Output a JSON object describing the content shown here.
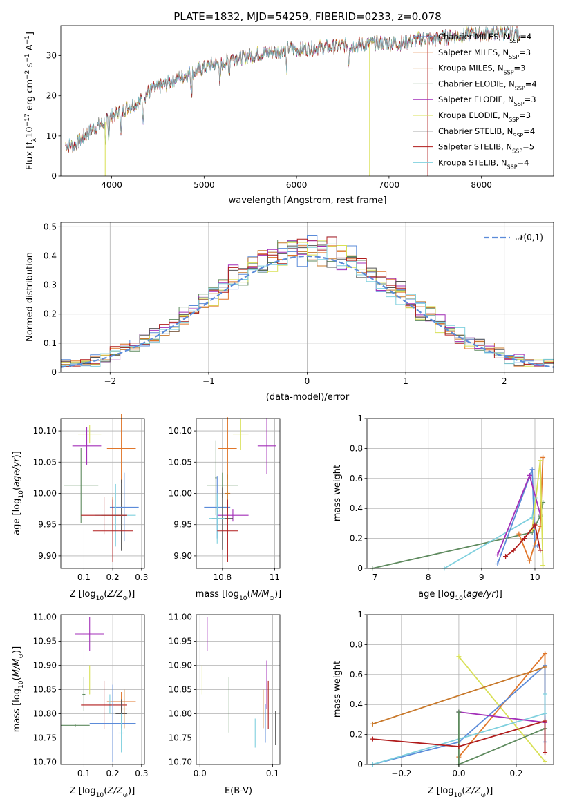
{
  "figure_title": "PLATE=1832, MJD=54259, FIBERID=0233, z=0.078",
  "colors": {
    "Chabrier MILES": "#5b8bd9",
    "Salpeter MILES": "#e0762a",
    "Kroupa MILES": "#c8782a",
    "Chabrier ELODIE": "#5e8a5e",
    "Salpeter ELODIE": "#a32fb8",
    "Kroupa ELODIE": "#d8e055",
    "Chabrier STELIB": "#555555",
    "Salpeter STELIB": "#b01c1c",
    "Kroupa STELIB": "#7fd0de"
  },
  "legend_labels": [
    {
      "key": "Chabrier MILES",
      "label": "Chabrier MILES, N",
      "sub": "SSP",
      "tail": "=4"
    },
    {
      "key": "Salpeter MILES",
      "label": "Salpeter MILES, N",
      "sub": "SSP",
      "tail": "=3"
    },
    {
      "key": "Kroupa MILES",
      "label": "Kroupa MILES, N",
      "sub": "SSP",
      "tail": "=3"
    },
    {
      "key": "Chabrier ELODIE",
      "label": "Chabrier ELODIE, N",
      "sub": "SSP",
      "tail": "=4"
    },
    {
      "key": "Salpeter ELODIE",
      "label": "Salpeter ELODIE, N",
      "sub": "SSP",
      "tail": "=3"
    },
    {
      "key": "Kroupa ELODIE",
      "label": "Kroupa ELODIE, N",
      "sub": "SSP",
      "tail": "=3"
    },
    {
      "key": "Chabrier STELIB",
      "label": "Chabrier STELIB, N",
      "sub": "SSP",
      "tail": "=4"
    },
    {
      "key": "Salpeter STELIB",
      "label": "Salpeter STELIB, N",
      "sub": "SSP",
      "tail": "=5"
    },
    {
      "key": "Kroupa STELIB",
      "label": "Kroupa STELIB, N",
      "sub": "SSP",
      "tail": "=4"
    }
  ],
  "chart_data": [
    {
      "id": "spectrum",
      "type": "line",
      "title": "PLATE=1832, MJD=54259, FIBERID=0233, z=0.078",
      "xlabel": "wavelength [Angstrom, rest frame]",
      "ylabel": "Flux [f",
      "ylabel_parts": [
        "Flux [f",
        "λ",
        "10",
        "−17",
        " erg cm",
        "−2",
        " s",
        "−1",
        " A",
        "−1",
        "]"
      ],
      "xlim": [
        3450,
        8780
      ],
      "ylim": [
        0,
        37.5
      ],
      "xticks": [
        4000,
        5000,
        6000,
        7000,
        8000
      ],
      "yticks": [
        0,
        10,
        20,
        30
      ],
      "grid": false,
      "legend_placement": "right",
      "continuum": [
        [
          3500,
          8
        ],
        [
          3600,
          7.5
        ],
        [
          3700,
          10
        ],
        [
          3800,
          12
        ],
        [
          3900,
          13
        ],
        [
          4000,
          15
        ],
        [
          4100,
          16
        ],
        [
          4200,
          17.5
        ],
        [
          4300,
          18.5
        ],
        [
          4400,
          21
        ],
        [
          4500,
          22
        ],
        [
          4600,
          23
        ],
        [
          4700,
          24.5
        ],
        [
          4800,
          25
        ],
        [
          4900,
          26
        ],
        [
          5000,
          27
        ],
        [
          5100,
          28
        ],
        [
          5200,
          28
        ],
        [
          5300,
          29.5
        ],
        [
          5400,
          29.5
        ],
        [
          5500,
          30
        ],
        [
          5600,
          30.5
        ],
        [
          5700,
          30.8
        ],
        [
          5800,
          31
        ],
        [
          5900,
          32
        ],
        [
          6000,
          31.5
        ],
        [
          6100,
          31.8
        ],
        [
          6200,
          32
        ],
        [
          6300,
          32
        ],
        [
          6400,
          32.2
        ],
        [
          6500,
          32.5
        ],
        [
          6600,
          32.5
        ],
        [
          6700,
          32.8
        ],
        [
          6800,
          33
        ],
        [
          6900,
          33
        ],
        [
          7000,
          33.2
        ],
        [
          7100,
          33
        ],
        [
          7200,
          33.5
        ],
        [
          7300,
          34
        ],
        [
          7400,
          34.5
        ],
        [
          7500,
          34
        ],
        [
          7600,
          34.5
        ],
        [
          7700,
          35
        ],
        [
          7800,
          35
        ],
        [
          7900,
          35.5
        ],
        [
          8000,
          35.5
        ],
        [
          8100,
          35.5
        ],
        [
          8200,
          35.8
        ],
        [
          8300,
          35.5
        ],
        [
          8400,
          35.5
        ]
      ],
      "dropouts": [
        {
          "x": 6790,
          "series": "Kroupa ELODIE"
        },
        {
          "x": 7420,
          "series": "Salpeter STELIB"
        },
        {
          "x": 3930,
          "series": "Kroupa ELODIE"
        }
      ]
    },
    {
      "id": "residuals",
      "type": "histogram",
      "xlabel": "(data-model)/error",
      "ylabel": "Normed distribution",
      "xlim": [
        -2.5,
        2.5
      ],
      "ylim": [
        0,
        0.515
      ],
      "xticks": [
        -2,
        -1,
        0,
        1,
        2
      ],
      "yticks": [
        0.0,
        0.1,
        0.2,
        0.3,
        0.4,
        0.5
      ],
      "grid": true,
      "legend_placement": "top-right",
      "legend": {
        "label": "𝒩(0,1)",
        "color": "#5b8bd9"
      },
      "bin_width": 0.1,
      "bin_start": -2.5
    },
    {
      "id": "age-vs-Z",
      "type": "errorbar",
      "xlabel": "Z [log",
      "ylabel": "age  [log",
      "xlim": [
        0.02,
        0.31
      ],
      "ylim": [
        9.88,
        10.12
      ],
      "xticks": [
        0.1,
        0.2,
        0.3
      ],
      "yticks": [
        9.9,
        9.95,
        10.0,
        10.05,
        10.1
      ],
      "ytick_labels": [
        "9.90",
        "9.95",
        "10.00",
        "10.05",
        "10.10"
      ],
      "grid": true,
      "points": [
        {
          "s": "Kroupa ELODIE",
          "x": 0.12,
          "xe": 0.04,
          "y": 10.095,
          "ye": 0.015
        },
        {
          "s": "Salpeter ELODIE",
          "x": 0.11,
          "xe": 0.05,
          "y": 10.076,
          "ye": 0.03
        },
        {
          "s": "Salpeter MILES",
          "x": 0.23,
          "xe": 0.05,
          "y": 10.072,
          "ye": 0.055
        },
        {
          "s": "Chabrier ELODIE",
          "x": 0.09,
          "xe": 0.06,
          "y": 10.013,
          "ye": 0.06
        },
        {
          "s": "Chabrier STELIB",
          "x": 0.23,
          "xe": 0.02,
          "y": 9.965,
          "ye": 0.057
        },
        {
          "s": "Chabrier MILES",
          "x": 0.24,
          "xe": 0.05,
          "y": 9.978,
          "ye": 0.055
        },
        {
          "s": "Kroupa MILES",
          "x": 0.2,
          "xe": 0.04,
          "y": 9.965,
          "ye": 0.03
        },
        {
          "s": "Kroupa STELIB",
          "x": 0.21,
          "xe": 0.07,
          "y": 9.965,
          "ye": 0.05
        },
        {
          "s": "Salpeter STELIB",
          "x": 0.17,
          "xe": 0.08,
          "y": 9.965,
          "ye": 0.03
        },
        {
          "s": "Salpeter STELIB",
          "x": 0.2,
          "xe": 0.07,
          "y": 9.94,
          "ye": 0.05
        }
      ]
    },
    {
      "id": "age-vs-mass",
      "type": "errorbar",
      "xlabel": "mass [log",
      "xlim": [
        10.7,
        11.02
      ],
      "ylim": [
        9.88,
        10.12
      ],
      "xticks": [
        10.8,
        11.0
      ],
      "yticks": [
        9.9,
        9.95,
        10.0,
        10.05,
        10.1
      ],
      "ytick_labels": [
        "9.90",
        "9.95",
        "10.00",
        "10.05",
        "10.10"
      ],
      "grid": true,
      "points": [
        {
          "s": "Kroupa ELODIE",
          "x": 10.87,
          "xe": 0.03,
          "y": 10.095,
          "ye": 0.025
        },
        {
          "s": "Salpeter ELODIE",
          "x": 10.97,
          "xe": 0.035,
          "y": 10.076,
          "ye": 0.045
        },
        {
          "s": "Salpeter MILES",
          "x": 10.82,
          "xe": 0.035,
          "y": 10.072,
          "ye": 0.05
        },
        {
          "s": "Chabrier ELODIE",
          "x": 10.775,
          "xe": 0.003,
          "y": 10.025,
          "ye": 0.06
        },
        {
          "s": "Chabrier ELODIE",
          "x": 10.8,
          "xe": 0.06,
          "y": 10.013,
          "ye": 0.02
        },
        {
          "s": "Chabrier MILES",
          "x": 10.78,
          "xe": 0.05,
          "y": 9.978,
          "ye": 0.05
        },
        {
          "s": "Kroupa MILES",
          "x": 10.82,
          "xe": 0.01,
          "y": 10.0,
          "ye": 0.03
        },
        {
          "s": "Salpeter ELODIE",
          "x": 10.84,
          "xe": 0.06,
          "y": 9.965,
          "ye": 0.01
        },
        {
          "s": "Chabrier STELIB",
          "x": 10.8,
          "xe": 0.04,
          "y": 9.96,
          "ye": 0.05
        },
        {
          "s": "Kroupa STELIB",
          "x": 10.78,
          "xe": 0.03,
          "y": 9.96,
          "ye": 0.04
        },
        {
          "s": "Salpeter STELIB",
          "x": 10.82,
          "xe": 0.04,
          "y": 9.94,
          "ye": 0.05
        }
      ]
    },
    {
      "id": "weight-vs-age",
      "type": "line",
      "xlabel": "age  [log",
      "ylabel": "mass weight",
      "xlim": [
        6.85,
        10.35
      ],
      "ylim": [
        0,
        1.0
      ],
      "xticks": [
        7,
        8,
        9,
        10
      ],
      "yticks": [
        0.0,
        0.2,
        0.4,
        0.6,
        0.8,
        1.0
      ],
      "grid": true,
      "series": [
        {
          "s": "Chabrier ELODIE",
          "x": [
            6.95,
            9.95,
            10.1,
            10.15
          ],
          "y": [
            0.0,
            0.24,
            0.35,
            0.44
          ]
        },
        {
          "s": "Kroupa STELIB",
          "x": [
            8.3,
            9.95,
            10.0
          ],
          "y": [
            0.0,
            0.34,
            0.47
          ]
        },
        {
          "s": "Chabrier MILES",
          "x": [
            9.3,
            9.95,
            10.0,
            10.05
          ],
          "y": [
            0.03,
            0.66,
            0.15,
            0.15
          ]
        },
        {
          "s": "Salpeter ELODIE",
          "x": [
            9.3,
            9.9,
            10.1
          ],
          "y": [
            0.09,
            0.62,
            0.36
          ]
        },
        {
          "s": "Salpeter MILES",
          "x": [
            9.7,
            9.9,
            10.1,
            10.15
          ],
          "y": [
            0.23,
            0.05,
            0.28,
            0.74
          ]
        },
        {
          "s": "Kroupa ELODIE",
          "x": [
            9.95,
            10.1,
            10.15
          ],
          "y": [
            0.26,
            0.72,
            0.02
          ]
        },
        {
          "s": "Salpeter STELIB",
          "x": [
            9.45,
            9.6,
            9.8,
            10.0,
            10.1
          ],
          "y": [
            0.08,
            0.12,
            0.2,
            0.29,
            0.12
          ]
        }
      ]
    },
    {
      "id": "mass-vs-Z",
      "type": "errorbar",
      "xlabel": "Z [log",
      "ylabel": "mass [log",
      "xlim": [
        0.02,
        0.31
      ],
      "ylim": [
        10.695,
        11.005
      ],
      "xticks": [
        0.1,
        0.2,
        0.3
      ],
      "yticks": [
        10.7,
        10.75,
        10.8,
        10.85,
        10.9,
        10.95,
        11.0
      ],
      "ytick_labels": [
        "10.70",
        "10.75",
        "10.80",
        "10.85",
        "10.90",
        "10.95",
        "11.00"
      ],
      "grid": true,
      "points": [
        {
          "s": "Salpeter ELODIE",
          "x": 0.12,
          "xe": 0.05,
          "y": 10.965,
          "ye": 0.035
        },
        {
          "s": "Kroupa ELODIE",
          "x": 0.12,
          "xe": 0.04,
          "y": 10.87,
          "ye": 0.03
        },
        {
          "s": "Chabrier ELODIE",
          "x": 0.1,
          "xe": 0.005,
          "y": 10.84,
          "ye": 0.035
        },
        {
          "s": "Salpeter MILES",
          "x": 0.23,
          "xe": 0.05,
          "y": 10.825,
          "ye": 0.02
        },
        {
          "s": "Kroupa STELIB",
          "x": 0.19,
          "xe": 0.11,
          "y": 10.82,
          "ye": 0.02
        },
        {
          "s": "Salpeter STELIB",
          "x": 0.17,
          "xe": 0.08,
          "y": 10.818,
          "ye": 0.05
        },
        {
          "s": "Chabrier STELIB",
          "x": 0.23,
          "xe": 0.02,
          "y": 10.8,
          "ye": 0.03
        },
        {
          "s": "Kroupa MILES",
          "x": 0.24,
          "xe": 0.01,
          "y": 10.81,
          "ye": 0.04
        },
        {
          "s": "Chabrier MILES",
          "x": 0.2,
          "xe": 0.08,
          "y": 10.78,
          "ye": 0.08
        },
        {
          "s": "Chabrier ELODIE",
          "x": 0.07,
          "xe": 0.05,
          "y": 10.776,
          "ye": 0.003
        },
        {
          "s": "Kroupa STELIB",
          "x": 0.23,
          "xe": 0.01,
          "y": 10.76,
          "ye": 0.04
        }
      ]
    },
    {
      "id": "mass-vs-ebv",
      "type": "errorbar",
      "xlabel": "E(B-V)",
      "xlim": [
        -0.005,
        0.11
      ],
      "ylim": [
        10.695,
        11.005
      ],
      "xticks": [
        0.0,
        0.1
      ],
      "xtick_labels": [
        "0.0",
        "0.1"
      ],
      "yticks": [
        10.7,
        10.75,
        10.8,
        10.85,
        10.9,
        10.95,
        11.0
      ],
      "ytick_labels": [
        "10.70",
        "10.75",
        "10.80",
        "10.85",
        "10.90",
        "10.95",
        "11.00"
      ],
      "grid": true,
      "points": [
        {
          "s": "Salpeter ELODIE",
          "x": 0.01,
          "xe": 0,
          "y": 10.965,
          "ye": 0.035
        },
        {
          "s": "Kroupa ELODIE",
          "x": 0.003,
          "xe": 0,
          "y": 10.87,
          "ye": 0.03
        },
        {
          "s": "Chabrier ELODIE",
          "x": 0.04,
          "xe": 0,
          "y": 10.818,
          "ye": 0.057
        },
        {
          "s": "Salpeter ELODIE",
          "x": 0.092,
          "xe": 0,
          "y": 10.86,
          "ye": 0.05
        },
        {
          "s": "Salpeter STELIB",
          "x": 0.094,
          "xe": 0,
          "y": 10.818,
          "ye": 0.05
        },
        {
          "s": "Kroupa MILES",
          "x": 0.087,
          "xe": 0,
          "y": 10.81,
          "ye": 0.04
        },
        {
          "s": "Chabrier STELIB",
          "x": 0.104,
          "xe": 0,
          "y": 10.77,
          "ye": 0.035
        },
        {
          "s": "Kroupa STELIB",
          "x": 0.076,
          "xe": 0,
          "y": 10.76,
          "ye": 0.03
        },
        {
          "s": "Chabrier MILES",
          "x": 0.09,
          "xe": 0,
          "y": 10.78,
          "ye": 0.04
        }
      ]
    },
    {
      "id": "weight-vs-Z",
      "type": "line",
      "xlabel": "Z [log",
      "ylabel": "mass weight",
      "xlim": [
        -0.32,
        0.33
      ],
      "ylim": [
        0,
        1.0
      ],
      "xticks": [
        -0.2,
        0.0,
        0.2
      ],
      "xtick_labels": [
        "−0.2",
        "0.0",
        "0.2"
      ],
      "yticks": [
        0.0,
        0.2,
        0.4,
        0.6,
        0.8,
        1.0
      ],
      "grid": true,
      "series": [
        {
          "s": "Kroupa ELODIE",
          "x": [
            0.0,
            0.3
          ],
          "y": [
            0.72,
            0.02
          ]
        },
        {
          "s": "Salpeter MILES",
          "x": [
            0.0,
            0.3,
            0.3
          ],
          "y": [
            0.05,
            0.74,
            0.28
          ]
        },
        {
          "s": "Chabrier MILES",
          "x": [
            -0.3,
            0.0,
            0.3,
            0.3
          ],
          "y": [
            0.0,
            0.15,
            0.66,
            0.15
          ]
        },
        {
          "s": "Kroupa STELIB",
          "x": [
            -0.3,
            0.3,
            0.3
          ],
          "y": [
            0.0,
            0.34,
            0.47
          ]
        },
        {
          "s": "Kroupa MILES",
          "x": [
            -0.3,
            0.3
          ],
          "y": [
            0.27,
            0.65
          ]
        },
        {
          "s": "Salpeter ELODIE",
          "x": [
            0.0,
            0.3
          ],
          "y": [
            0.35,
            0.28
          ]
        },
        {
          "s": "Chabrier ELODIE",
          "x": [
            0.0,
            0.0,
            0.3
          ],
          "y": [
            0.35,
            0.0,
            0.24
          ]
        },
        {
          "s": "Salpeter STELIB",
          "x": [
            -0.3,
            0.0,
            0.3,
            0.3
          ],
          "y": [
            0.17,
            0.12,
            0.29,
            0.08
          ]
        }
      ]
    }
  ]
}
